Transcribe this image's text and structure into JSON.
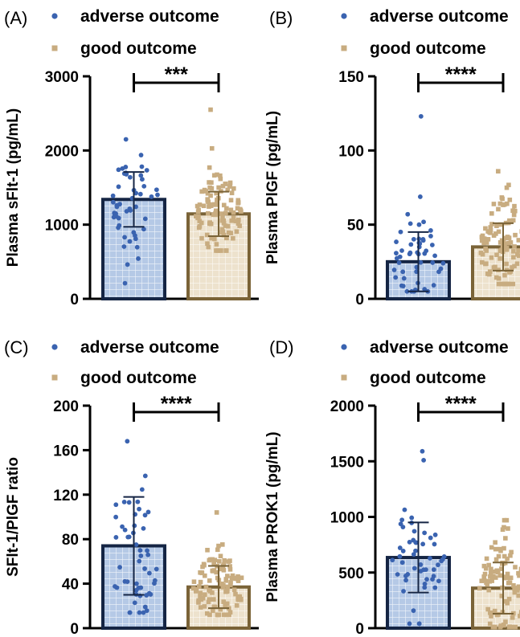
{
  "colors": {
    "adverse_fill": "#b5c9e6",
    "adverse_border": "#152544",
    "adverse_dot": "#3a63b0",
    "good_fill": "#ede2cd",
    "good_border": "#7a6337",
    "good_dot": "#c8ac80",
    "axis": "#000000"
  },
  "chart_data": [
    {
      "panel": "(A)",
      "type": "bar",
      "ylabel": "Plasma sFlt-1 (pg/mL)",
      "ylim": [
        0,
        3000
      ],
      "yticks": [
        "0",
        "1000",
        "2000",
        "3000"
      ],
      "legend": [
        "adverse outcome",
        "good outcome"
      ],
      "significance": "***",
      "series": [
        {
          "name": "adverse outcome",
          "mean": 1340,
          "sd": 370,
          "range": [
            210,
            2150
          ]
        },
        {
          "name": "good outcome",
          "mean": 1145,
          "sd": 300,
          "range": [
            650,
            2550
          ]
        }
      ]
    },
    {
      "panel": "(B)",
      "type": "bar",
      "ylabel": "Plasma PlGF (pg/mL)",
      "ylim": [
        0,
        150
      ],
      "yticks": [
        "0",
        "50",
        "100",
        "150"
      ],
      "legend": [
        "adverse outcome",
        "good outcome"
      ],
      "significance": "****",
      "series": [
        {
          "name": "adverse outcome",
          "mean": 25,
          "sd": 20,
          "range": [
            5,
            123
          ]
        },
        {
          "name": "good outcome",
          "mean": 35,
          "sd": 16,
          "range": [
            10,
            86
          ]
        }
      ]
    },
    {
      "panel": "(C)",
      "type": "bar",
      "ylabel": "SFlt-1/PlGF ratio",
      "ylim": [
        0,
        200
      ],
      "yticks": [
        "0",
        "40",
        "80",
        "120",
        "160",
        "200"
      ],
      "legend": [
        "adverse outcome",
        "good outcome"
      ],
      "significance": "****",
      "series": [
        {
          "name": "adverse outcome",
          "mean": 74,
          "sd": 44,
          "range": [
            14,
            168
          ]
        },
        {
          "name": "good outcome",
          "mean": 37,
          "sd": 19,
          "range": [
            12,
            104
          ]
        }
      ]
    },
    {
      "panel": "(D)",
      "type": "bar",
      "ylabel": "Plasma PROK1 (pg/mL)",
      "ylim": [
        0,
        2000
      ],
      "yticks": [
        "0",
        "500",
        "1000",
        "1500",
        "2000"
      ],
      "legend": [
        "adverse outcome",
        "good outcome"
      ],
      "significance": "****",
      "series": [
        {
          "name": "adverse outcome",
          "mean": 635,
          "sd": 315,
          "range": [
            40,
            1590
          ]
        },
        {
          "name": "good outcome",
          "mean": 360,
          "sd": 230,
          "range": [
            10,
            970
          ]
        }
      ]
    }
  ]
}
